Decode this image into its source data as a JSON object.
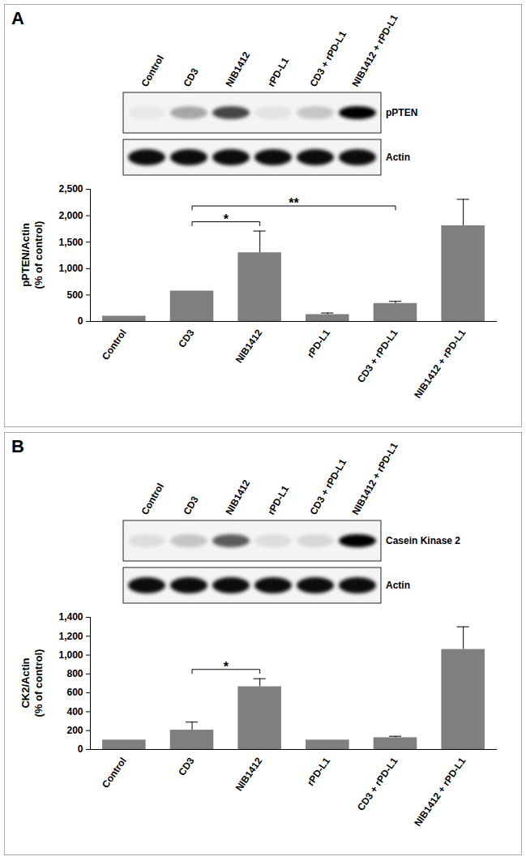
{
  "chart_data": [
    {
      "type": "bar",
      "panel": "A",
      "blot_labels": [
        "pPTEN",
        "Actin"
      ],
      "categories": [
        "Control",
        "CD3",
        "NIB1412",
        "rPD-L1",
        "CD3 + rPD-L1",
        "NIB1412 + rPD-L1"
      ],
      "values": [
        100,
        575,
        1300,
        130,
        340,
        1810
      ],
      "errors": [
        0,
        0,
        410,
        30,
        40,
        500
      ],
      "color": "#7f7f7f",
      "ylabel": [
        "pPTEN/Actin",
        "(% of control)"
      ],
      "ylim": [
        0,
        2500
      ],
      "yticks": [
        0,
        500,
        1000,
        1500,
        2000,
        2500
      ],
      "significance": [
        {
          "between": [
            "CD3",
            "NIB1412"
          ],
          "label": "*"
        },
        {
          "between": [
            "CD3",
            "CD3 + rPD-L1"
          ],
          "label": "**"
        }
      ]
    },
    {
      "type": "bar",
      "panel": "B",
      "blot_labels": [
        "Casein Kinase 2",
        "Actin"
      ],
      "categories": [
        "Control",
        "CD3",
        "NIB1412",
        "rPD-L1",
        "CD3 + rPD-L1",
        "NIB1412 + rPD-L1"
      ],
      "values": [
        100,
        205,
        665,
        100,
        125,
        1060
      ],
      "errors": [
        0,
        85,
        85,
        0,
        15,
        240
      ],
      "color": "#7f7f7f",
      "ylabel": [
        "CK2/Actin",
        "(% of control)"
      ],
      "ylim": [
        0,
        1400
      ],
      "yticks": [
        0,
        200,
        400,
        600,
        800,
        1000,
        1200,
        1400
      ],
      "significance": [
        {
          "between": [
            "CD3",
            "NIB1412"
          ],
          "label": "*"
        }
      ]
    }
  ]
}
